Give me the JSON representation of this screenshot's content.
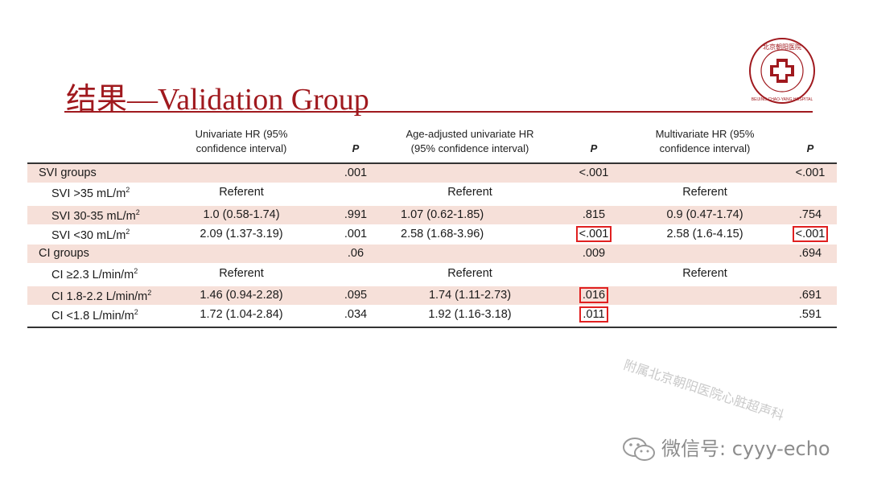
{
  "slide": {
    "title": "结果—Validation Group"
  },
  "logo": {
    "text": "BEIJING CHAO-YANG HOSPITAL",
    "accent": "#a0191e"
  },
  "table": {
    "headers": {
      "h1": [
        "Univariate HR (95%",
        "confidence interval)"
      ],
      "p1": "P",
      "h2": [
        "Age-adjusted univariate HR",
        "(95% confidence interval)"
      ],
      "p2": "P",
      "h3": [
        "Multivariate HR (95%",
        "confidence interval)"
      ],
      "p3": "P"
    },
    "rows": [
      {
        "label": "SVI groups",
        "sub": false,
        "shaded": true,
        "u": "",
        "up": ".001",
        "a": "",
        "ap": "<.001",
        "m": "",
        "mp": "<.001"
      },
      {
        "label": "SVI >35 mL/m",
        "sup": "2",
        "sub": true,
        "shaded": false,
        "u": "Referent",
        "up": "",
        "a": "Referent",
        "ap": "",
        "m": "Referent",
        "mp": ""
      },
      {
        "label": "SVI 30-35 mL/m",
        "sup": "2",
        "sub": true,
        "shaded": true,
        "u": "1.0 (0.58-1.74)",
        "up": ".991",
        "a": "1.07 (0.62-1.85)",
        "ap": ".815",
        "m": "0.9 (0.47-1.74)",
        "mp": ".754"
      },
      {
        "label": "SVI <30 mL/m",
        "sup": "2",
        "sub": true,
        "shaded": false,
        "u": "2.09 (1.37-3.19)",
        "up": ".001",
        "a": "2.58 (1.68-3.96)",
        "ap": "<.001",
        "m": "2.58 (1.6-4.15)",
        "mp": "<.001"
      },
      {
        "label": "CI groups",
        "sub": false,
        "shaded": true,
        "u": "",
        "up": ".06",
        "a": "",
        "ap": ".009",
        "m": "",
        "mp": ".694"
      },
      {
        "label": "CI ≥2.3 L/min/m",
        "sup": "2",
        "sub": true,
        "shaded": false,
        "u": "Referent",
        "up": "",
        "a": "Referent",
        "ap": "",
        "m": "Referent",
        "mp": ""
      },
      {
        "label": "CI 1.8-2.2 L/min/m",
        "sup": "2",
        "sub": true,
        "shaded": true,
        "u": "1.46 (0.94-2.28)",
        "up": ".095",
        "a": "1.74 (1.11-2.73)",
        "ap": ".016",
        "m": "",
        "mp": ".691"
      },
      {
        "label": "CI <1.8 L/min/m",
        "sup": "2",
        "sub": true,
        "shaded": false,
        "u": "1.72 (1.04-2.84)",
        "up": ".034",
        "a": "1.92 (1.16-3.18)",
        "ap": ".011",
        "m": "",
        "mp": ".591"
      }
    ]
  },
  "watermark": "附属北京朝阳医院心脏超声科",
  "wechat": "微信号: cyyy-echo"
}
